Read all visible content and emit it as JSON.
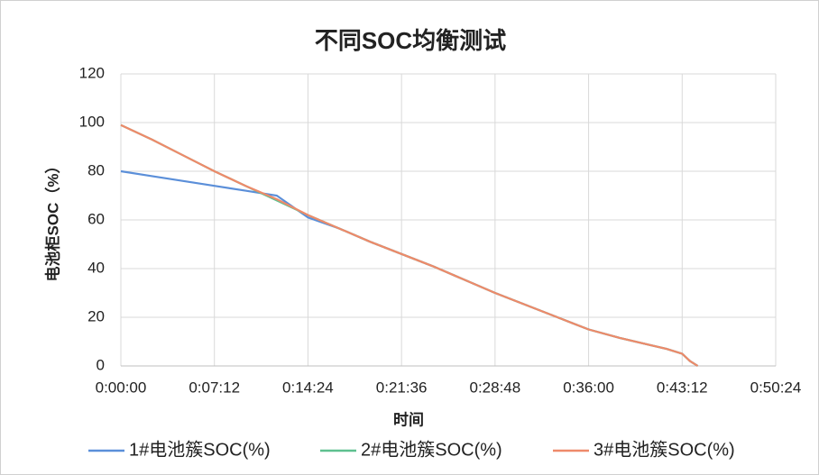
{
  "chart_data": {
    "type": "line",
    "title": "不同SOC均衡测试",
    "x_label": "时间",
    "y_label": "电池柜SOC（%）",
    "x": [
      0,
      144,
      288,
      432,
      576,
      720,
      864,
      1008,
      1152,
      1296,
      1440,
      1584,
      1728,
      1872,
      2016,
      2160,
      2304,
      2448,
      2520,
      2592,
      2628,
      2664
    ],
    "series": [
      {
        "name": "1#电池簇SOC(%)",
        "color": "#5b8fd9",
        "values": [
          80,
          78,
          76,
          74,
          72,
          70,
          61,
          56.5,
          51,
          46,
          41,
          35.5,
          30,
          25,
          20,
          15,
          11.5,
          8.5,
          7,
          5,
          2,
          0
        ]
      },
      {
        "name": "2#电池簇SOC(%)",
        "color": "#5ec08f",
        "values": [
          99,
          93,
          86.5,
          80,
          74,
          68,
          62,
          56.5,
          51,
          46,
          41,
          35.5,
          30,
          25,
          20,
          15,
          11.5,
          8.5,
          7,
          5,
          2,
          0
        ]
      },
      {
        "name": "3#电池簇SOC(%)",
        "color": "#ee8a6a",
        "values": [
          99,
          93,
          86.5,
          80,
          74,
          68.5,
          62,
          56.5,
          51,
          46,
          41,
          35.5,
          30,
          25,
          20,
          15,
          11.5,
          8.5,
          7,
          5,
          2,
          0
        ]
      }
    ],
    "xlim": [
      0,
      3024
    ],
    "xticks": [
      {
        "value": 0,
        "label": "0:00:00"
      },
      {
        "value": 432,
        "label": "0:07:12"
      },
      {
        "value": 864,
        "label": "0:14:24"
      },
      {
        "value": 1296,
        "label": "0:21:36"
      },
      {
        "value": 1728,
        "label": "0:28:48"
      },
      {
        "value": 2160,
        "label": "0:36:00"
      },
      {
        "value": 2592,
        "label": "0:43:12"
      },
      {
        "value": 3024,
        "label": "0:50:24"
      }
    ],
    "ylim": [
      0,
      120
    ],
    "yticks": [
      0,
      20,
      40,
      60,
      80,
      100,
      120
    ],
    "grid": true,
    "legend": "bottom"
  }
}
